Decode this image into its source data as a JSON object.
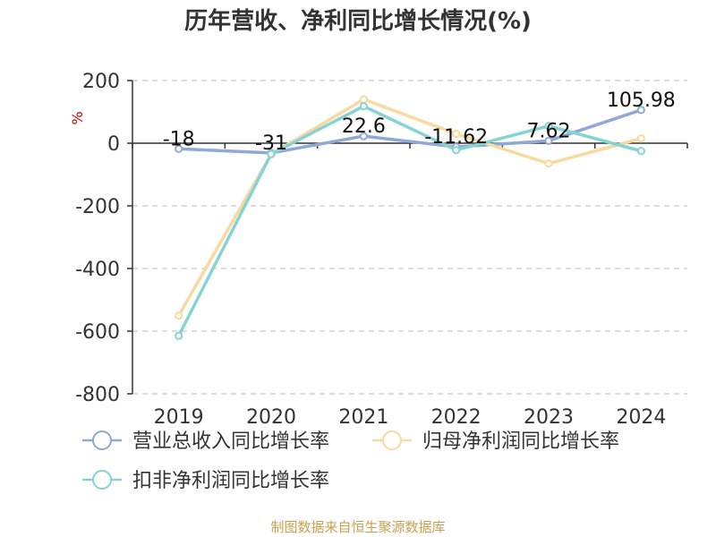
{
  "chart_data": {
    "type": "line",
    "title": "历年营收、净利同比增长情况(%)",
    "ylabel": "%",
    "categories": [
      "2019",
      "2020",
      "2021",
      "2022",
      "2023",
      "2024"
    ],
    "ylim": [
      -800,
      200
    ],
    "yticks": [
      200,
      0,
      -200,
      -400,
      -600,
      -800
    ],
    "grid": true,
    "legend_position": "bottom",
    "series": [
      {
        "name": "营业总收入同比增长率",
        "color": "#8fa8d6",
        "values": [
          -18,
          -31,
          22.6,
          -11.62,
          7.62,
          105.98
        ],
        "labels": [
          "-18",
          "-31",
          "22.6",
          "-11.62",
          "7.62",
          "105.98"
        ]
      },
      {
        "name": "归母净利润同比增长率",
        "color": "#f8d9a0",
        "values": [
          -550,
          -35,
          140,
          30,
          -65,
          15
        ]
      },
      {
        "name": "扣非净利润同比增长率",
        "color": "#86d3d3",
        "values": [
          -615,
          -35,
          118,
          -22,
          55,
          -25
        ]
      }
    ],
    "source": "制图数据来自恒生聚源数据库"
  }
}
